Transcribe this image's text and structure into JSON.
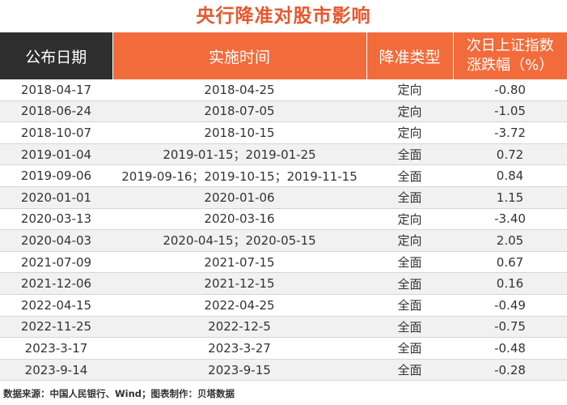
{
  "title": "央行降准对股市影响",
  "headers": [
    "公布日期",
    "实施时间",
    "降准类型",
    "次日上证指数涨跌幅（%）"
  ],
  "header_lines": {
    "col4_line1": "次日上证指数",
    "col4_line2": "涨跌幅（%）"
  },
  "rows": [
    [
      "2018-04-17",
      "2018-04-25",
      "定向",
      "-0.80"
    ],
    [
      "2018-06-24",
      "2018-07-05",
      "定向",
      "-1.05"
    ],
    [
      "2018-10-07",
      "2018-10-15",
      "定向",
      "-3.72"
    ],
    [
      "2019-01-04",
      "2019-01-15；2019-01-25",
      "全面",
      "0.72"
    ],
    [
      "2019-09-06",
      "2019-09-16；2019-10-15；2019-11-15",
      "全面",
      "0.84"
    ],
    [
      "2020-01-01",
      "2020-01-06",
      "全面",
      "1.15"
    ],
    [
      "2020-03-13",
      "2020-03-16",
      "定向",
      "-3.40"
    ],
    [
      "2020-04-03",
      "2020-04-15；2020-05-15",
      "定向",
      "2.05"
    ],
    [
      "2021-07-09",
      "2021-07-15",
      "全面",
      "0.67"
    ],
    [
      "2021-12-06",
      "2021-12-15",
      "全面",
      "0.16"
    ],
    [
      "2022-04-15",
      "2022-04-25",
      "全面",
      "-0.49"
    ],
    [
      "2022-11-25",
      "2022-12-5",
      "全面",
      "-0.75"
    ],
    [
      "2023-3-17",
      "2023-3-27",
      "全面",
      "-0.48"
    ],
    [
      "2023-9-14",
      "2023-9-15",
      "全面",
      "-0.28"
    ]
  ],
  "footer": "数据来源：中国人民银行、Wind；图表制作：贝塔数据",
  "colors": {
    "title": "#e8572b",
    "header_dark": "#2f2f2f",
    "header_orange": "#f26b3a",
    "stripe": "#f1f1f1"
  }
}
